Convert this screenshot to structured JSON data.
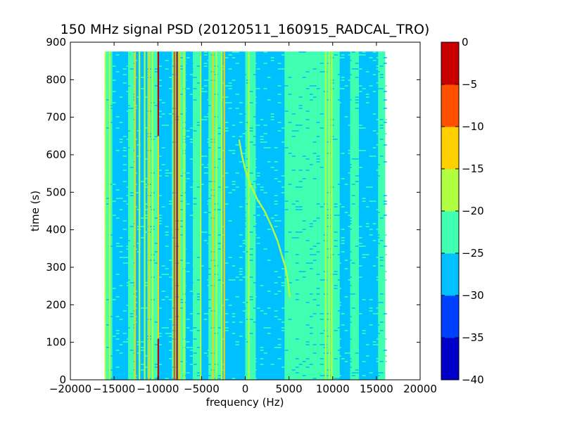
{
  "chart_data": {
    "type": "heatmap",
    "title": "150 MHz signal PSD (20120511_160915_RADCAL_TRO)",
    "xlabel": "frequency (Hz)",
    "ylabel": "time (s)",
    "xlim": [
      -20000,
      20000
    ],
    "ylim": [
      0,
      900
    ],
    "x_ticks": [
      -20000,
      -15000,
      -10000,
      -5000,
      0,
      5000,
      10000,
      15000,
      20000
    ],
    "x_tick_labels": [
      "−20000",
      "−15000",
      "−10000",
      "−5000",
      "0",
      "5000",
      "10000",
      "15000",
      "20000"
    ],
    "y_ticks": [
      0,
      100,
      200,
      300,
      400,
      500,
      600,
      700,
      800,
      900
    ],
    "y_tick_labels": [
      "0",
      "100",
      "200",
      "300",
      "400",
      "500",
      "600",
      "700",
      "800",
      "900"
    ],
    "data_extent": {
      "x": [
        -16000,
        16000
      ],
      "y": [
        0,
        875
      ]
    },
    "colorbar": {
      "levels": [
        -40,
        -35,
        -30,
        -25,
        -20,
        -15,
        -10,
        -5,
        0
      ],
      "tick_labels": [
        "−40",
        "−35",
        "−30",
        "−25",
        "−20",
        "−15",
        "−10",
        "−5",
        "0"
      ],
      "colors": [
        "#0000c8",
        "#0040ff",
        "#00c0ff",
        "#40ffb0",
        "#b0ff40",
        "#ffd000",
        "#ff5000",
        "#c80000"
      ]
    },
    "background_bands": [
      {
        "x": [
          -16000,
          -15200
        ],
        "level": -22.5
      },
      {
        "x": [
          -15200,
          -13400
        ],
        "level": -27.5
      },
      {
        "x": [
          -13400,
          -12600
        ],
        "level": -22.5
      },
      {
        "x": [
          -12600,
          -11200
        ],
        "level": -27.5
      },
      {
        "x": [
          -11200,
          -10000
        ],
        "level": -22.5
      },
      {
        "x": [
          -10000,
          -8400
        ],
        "level": -27.5
      },
      {
        "x": [
          -8400,
          -6800
        ],
        "level": -22.5
      },
      {
        "x": [
          -6800,
          -6000
        ],
        "level": -27.5
      },
      {
        "x": [
          -6000,
          -5200
        ],
        "level": -22.5
      },
      {
        "x": [
          -5200,
          -4200
        ],
        "level": -27.5
      },
      {
        "x": [
          -4200,
          -2600
        ],
        "level": -22.5
      },
      {
        "x": [
          -2600,
          0
        ],
        "level": -27.5
      },
      {
        "x": [
          0,
          1200
        ],
        "level": -22.5
      },
      {
        "x": [
          1200,
          4500
        ],
        "level": -26.0
      },
      {
        "x": [
          4500,
          9000
        ],
        "level": -22.5
      },
      {
        "x": [
          9000,
          10800
        ],
        "level": -22.5
      },
      {
        "x": [
          10800,
          12000
        ],
        "level": -26.0
      },
      {
        "x": [
          12000,
          13000
        ],
        "level": -22.5
      },
      {
        "x": [
          13000,
          15200
        ],
        "level": -26.0
      },
      {
        "x": [
          15200,
          16000
        ],
        "level": -22.5
      }
    ],
    "tones": [
      {
        "x": -16000,
        "level": -17.5
      },
      {
        "x": -15500,
        "level": -17.5
      },
      {
        "x": -12600,
        "level": -12.5
      },
      {
        "x": -12100,
        "level": -17.5
      },
      {
        "x": -11500,
        "level": -17.5
      },
      {
        "x": -11000,
        "level": -12.5
      },
      {
        "x": -10600,
        "level": -17.5
      },
      {
        "x": -9950,
        "level": -2.5,
        "y": [
          0,
          110
        ]
      },
      {
        "x": -9950,
        "level": -12.5,
        "y": [
          110,
          650
        ]
      },
      {
        "x": -9950,
        "level": -2.5,
        "y": [
          650,
          875
        ]
      },
      {
        "x": -8100,
        "level": -7.5
      },
      {
        "x": -7800,
        "level": -2.5
      },
      {
        "x": -7500,
        "level": -12.5
      },
      {
        "x": -7000,
        "level": -17.5
      },
      {
        "x": -5100,
        "level": -17.5
      },
      {
        "x": -3700,
        "level": -12.5
      },
      {
        "x": -3300,
        "level": -17.5
      },
      {
        "x": -2700,
        "level": -17.5
      },
      {
        "x": -2400,
        "level": -12.5
      },
      {
        "x": 400,
        "level": -17.5
      },
      {
        "x": 9200,
        "level": -17.5
      },
      {
        "x": 9600,
        "level": -17.5
      },
      {
        "x": 9900,
        "level": -17.5
      }
    ],
    "drifting_signal": {
      "level": -17.5,
      "points": [
        {
          "x": -700,
          "y": 640
        },
        {
          "x": -400,
          "y": 600
        },
        {
          "x": 0,
          "y": 560
        },
        {
          "x": 600,
          "y": 520
        },
        {
          "x": 1400,
          "y": 480
        },
        {
          "x": 2200,
          "y": 450
        },
        {
          "x": 3000,
          "y": 410
        },
        {
          "x": 3700,
          "y": 370
        },
        {
          "x": 4200,
          "y": 330
        },
        {
          "x": 4600,
          "y": 300
        },
        {
          "x": 4900,
          "y": 260
        },
        {
          "x": 5100,
          "y": 220
        }
      ]
    }
  }
}
